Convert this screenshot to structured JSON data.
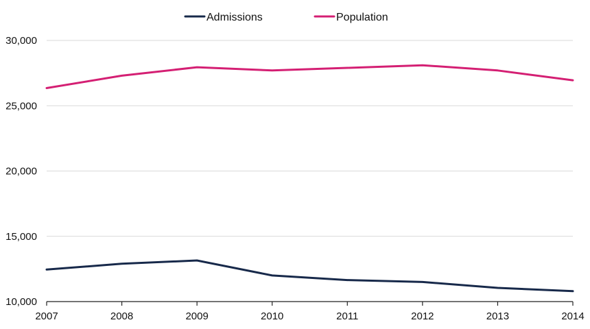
{
  "chart_data": {
    "type": "line",
    "title": "",
    "xlabel": "",
    "ylabel": "",
    "x": [
      "2007",
      "2008",
      "2009",
      "2010",
      "2011",
      "2012",
      "2013",
      "2014"
    ],
    "series": [
      {
        "name": "Admissions",
        "color": "#17294a",
        "values": [
          12450,
          12900,
          13150,
          12000,
          11650,
          11500,
          11050,
          10800
        ]
      },
      {
        "name": "Population",
        "color": "#d41f73",
        "values": [
          26350,
          27300,
          27950,
          27700,
          27900,
          28100,
          27700,
          26950
        ]
      }
    ],
    "ylim": [
      10000,
      30000
    ],
    "yticks": [
      10000,
      15000,
      20000,
      25000,
      30000
    ],
    "ytick_labels": [
      "10,000",
      "15,000",
      "20,000",
      "25,000",
      "30,000"
    ],
    "grid": "horizontal",
    "legend_position": "top-center",
    "gridline_color": "#d9d9d9",
    "axis_color": "#222222"
  }
}
